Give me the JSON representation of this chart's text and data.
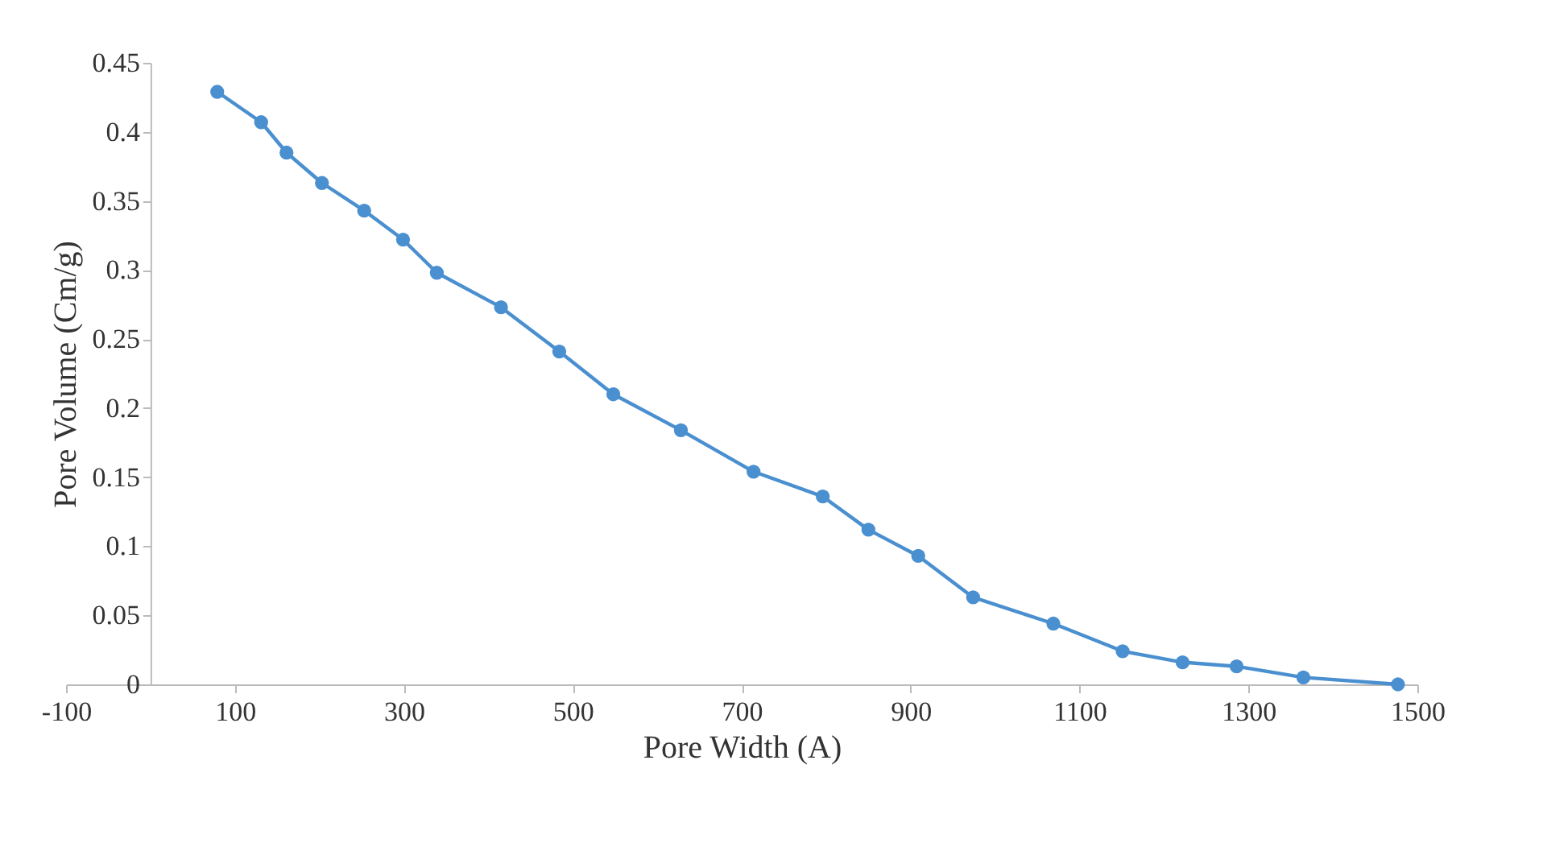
{
  "chart_data": {
    "type": "line",
    "xlabel": "Pore Width (A)",
    "ylabel": "Pore Volume (Cm/g)",
    "x": [
      79,
      131,
      161,
      203,
      253,
      299,
      339,
      415,
      484,
      548,
      628,
      714,
      796,
      850,
      909,
      974,
      1069,
      1151,
      1222,
      1286,
      1365,
      1477
    ],
    "series": [
      {
        "color": "#4a8fcf",
        "values": [
          0.429,
          0.407,
          0.385,
          0.363,
          0.343,
          0.322,
          0.298,
          0.273,
          0.241,
          0.21,
          0.184,
          0.154,
          0.136,
          0.112,
          0.093,
          0.063,
          0.044,
          0.024,
          0.016,
          0.013,
          0.005,
          0.0
        ]
      }
    ],
    "xlim": [
      -100,
      1500
    ],
    "xticks": [
      -100,
      100,
      300,
      500,
      700,
      900,
      1100,
      1300,
      1500
    ],
    "ylim": [
      0,
      0.45
    ],
    "yticks": [
      0,
      0.05,
      0.1,
      0.15,
      0.2,
      0.25,
      0.3,
      0.35,
      0.4,
      0.45
    ],
    "marker": "circle",
    "line_style": "solid",
    "grid": false,
    "legend": false
  }
}
